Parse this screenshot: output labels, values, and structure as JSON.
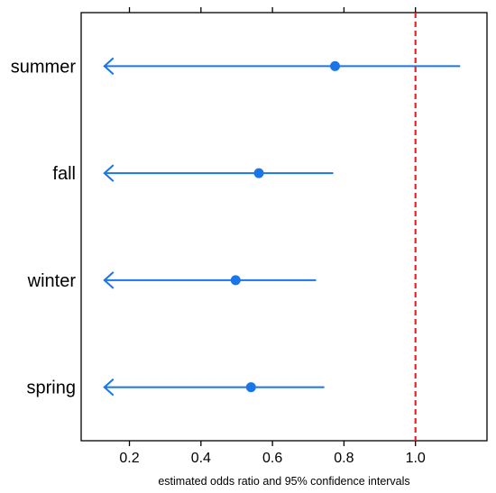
{
  "chart_data": {
    "type": "scatter",
    "subtype": "forest-plot",
    "title": "",
    "xlabel": "estimated odds ratio and 95% confidence intervals",
    "ylabel": "",
    "xlim": [
      0.065,
      1.2
    ],
    "xticks": [
      0.2,
      0.4,
      0.6,
      0.8,
      1.0
    ],
    "xtick_labels": [
      "0.2",
      "0.4",
      "0.6",
      "0.8",
      "1.0"
    ],
    "grid": false,
    "legend": "none",
    "reference_line": {
      "x": 1.0,
      "style": "dashed",
      "color": "#e8232a"
    },
    "series_color": "#1a75e8",
    "categories": [
      "summer",
      "fall",
      "winter",
      "spring"
    ],
    "points": [
      {
        "category": "summer",
        "estimate": 0.775,
        "lower": 0.13,
        "upper": 1.125,
        "lower_truncated": true
      },
      {
        "category": "fall",
        "estimate": 0.562,
        "lower": 0.13,
        "upper": 0.77,
        "lower_truncated": true
      },
      {
        "category": "winter",
        "estimate": 0.497,
        "lower": 0.13,
        "upper": 0.722,
        "lower_truncated": true
      },
      {
        "category": "spring",
        "estimate": 0.54,
        "lower": 0.13,
        "upper": 0.745,
        "lower_truncated": true
      }
    ]
  }
}
